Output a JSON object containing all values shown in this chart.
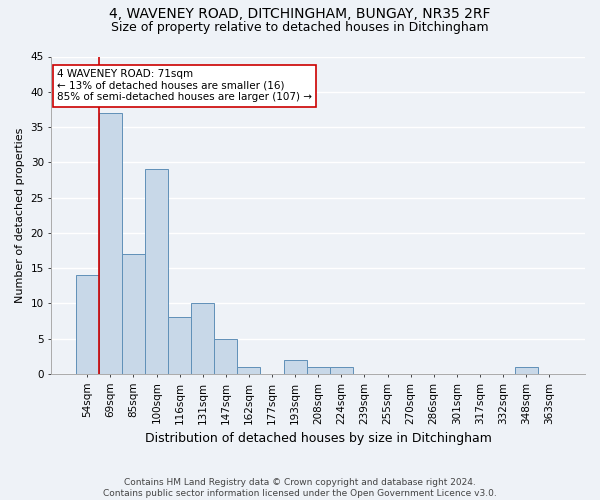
{
  "title_line1": "4, WAVENEY ROAD, DITCHINGHAM, BUNGAY, NR35 2RF",
  "title_line2": "Size of property relative to detached houses in Ditchingham",
  "xlabel": "Distribution of detached houses by size in Ditchingham",
  "ylabel": "Number of detached properties",
  "categories": [
    "54sqm",
    "69sqm",
    "85sqm",
    "100sqm",
    "116sqm",
    "131sqm",
    "147sqm",
    "162sqm",
    "177sqm",
    "193sqm",
    "208sqm",
    "224sqm",
    "239sqm",
    "255sqm",
    "270sqm",
    "286sqm",
    "301sqm",
    "317sqm",
    "332sqm",
    "348sqm",
    "363sqm"
  ],
  "values": [
    14,
    37,
    17,
    29,
    8,
    10,
    5,
    1,
    0,
    2,
    1,
    1,
    0,
    0,
    0,
    0,
    0,
    0,
    0,
    1,
    0
  ],
  "bar_color": "#c8d8e8",
  "bar_edge_color": "#6090b8",
  "highlight_bar_idx": 1,
  "highlight_color": "#cc0000",
  "ylim": [
    0,
    45
  ],
  "yticks": [
    0,
    5,
    10,
    15,
    20,
    25,
    30,
    35,
    40,
    45
  ],
  "annotation_line1": "4 WAVENEY ROAD: 71sqm",
  "annotation_line2": "← 13% of detached houses are smaller (16)",
  "annotation_line3": "85% of semi-detached houses are larger (107) →",
  "annotation_box_color": "#ffffff",
  "annotation_border_color": "#cc0000",
  "footer_line1": "Contains HM Land Registry data © Crown copyright and database right 2024.",
  "footer_line2": "Contains public sector information licensed under the Open Government Licence v3.0.",
  "background_color": "#eef2f7",
  "grid_color": "#ffffff",
  "title_fontsize": 10,
  "subtitle_fontsize": 9,
  "ylabel_fontsize": 8,
  "xlabel_fontsize": 9,
  "tick_fontsize": 7.5,
  "annotation_fontsize": 7.5,
  "footer_fontsize": 6.5
}
